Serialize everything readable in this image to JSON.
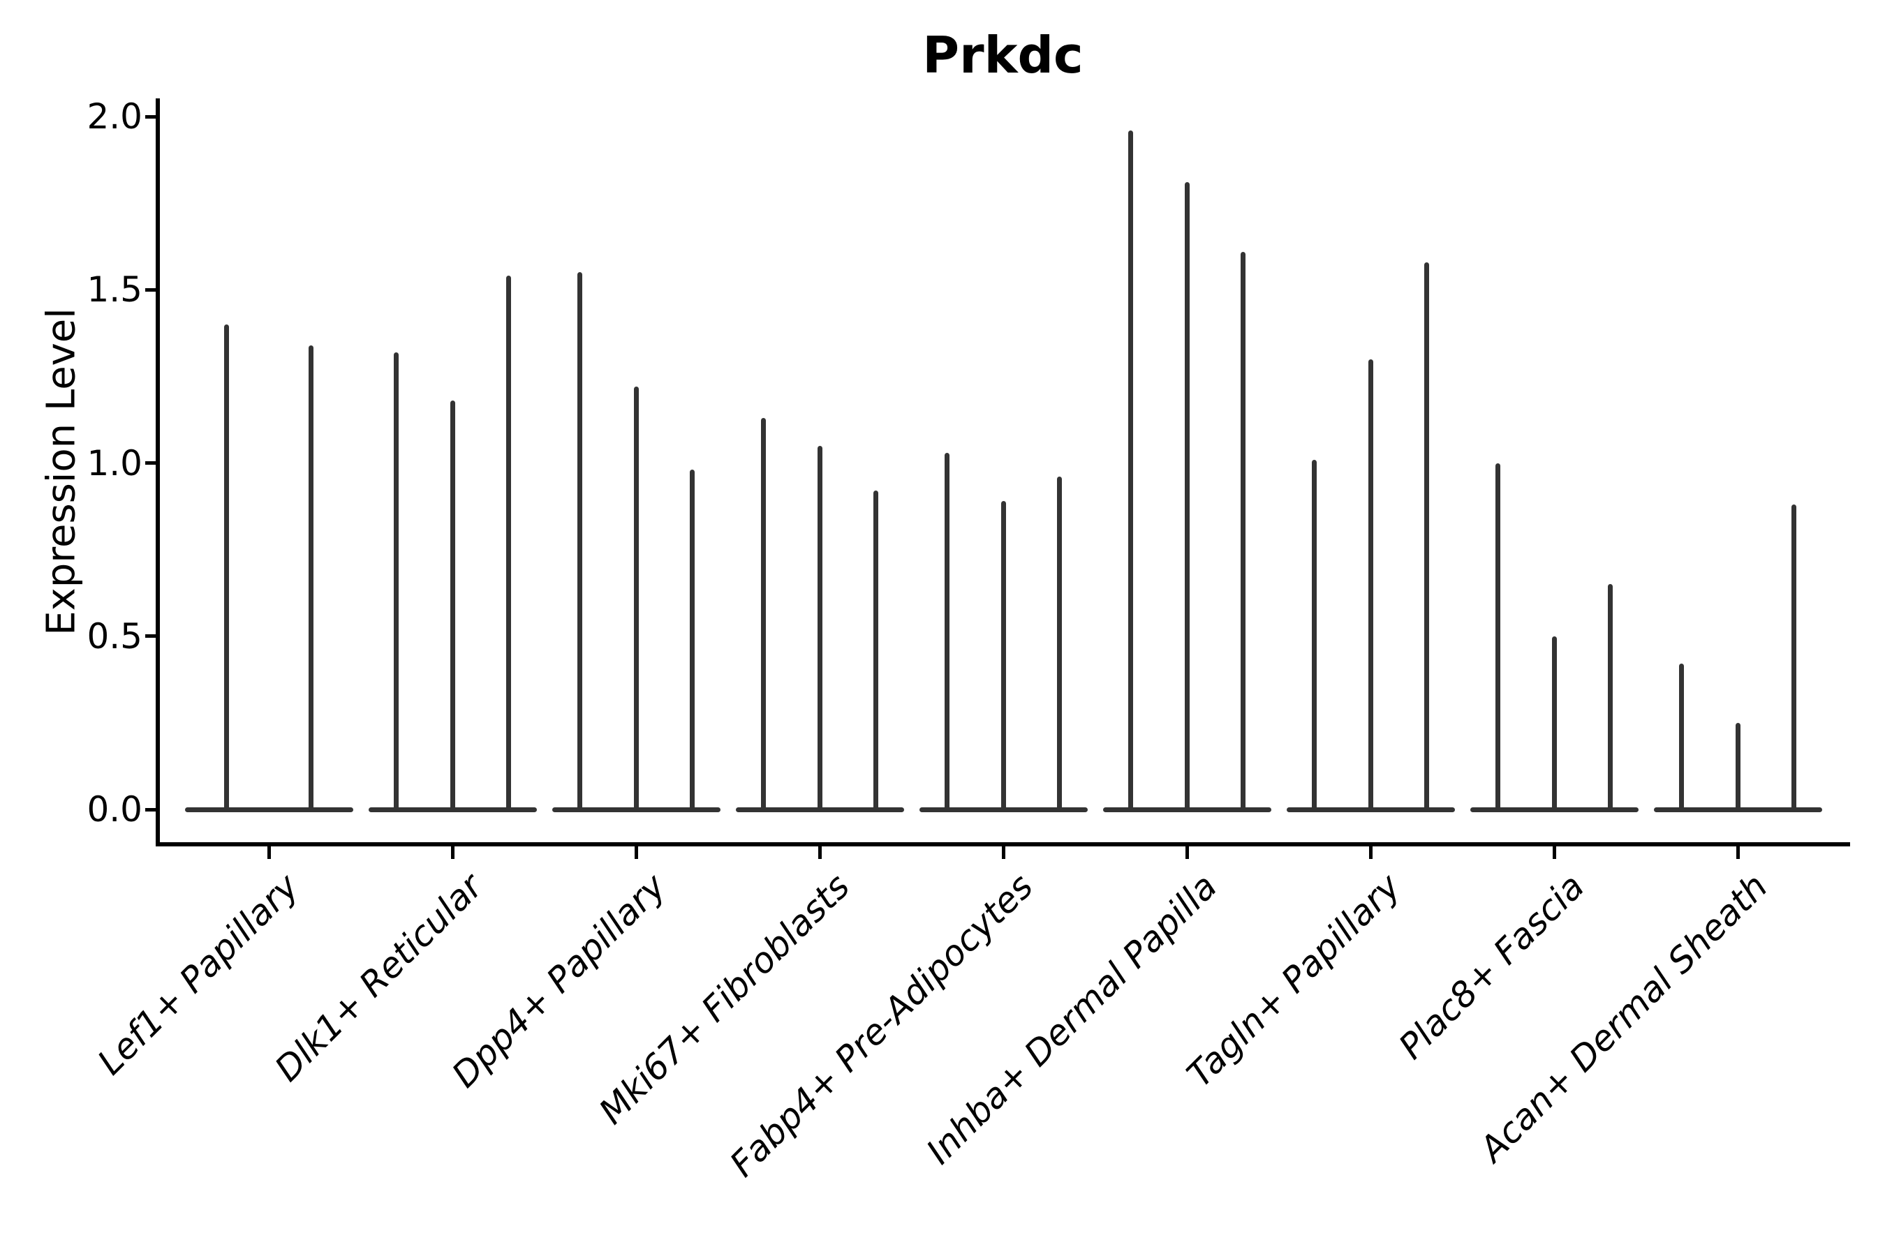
{
  "figure": {
    "title": "Prkdc",
    "ylabel": "Expression Level",
    "background_color": "#ffffff",
    "axis_color": "#000000",
    "violin_color": "#333333"
  },
  "chart_data": {
    "type": "violin",
    "title": "Prkdc",
    "xlabel": "",
    "ylabel": "Expression Level",
    "ylim": [
      0,
      2.05
    ],
    "yticks": [
      0.0,
      0.5,
      1.0,
      1.5,
      2.0
    ],
    "ytick_labels": [
      "0.0",
      "0.5",
      "1.0",
      "1.5",
      "2.0"
    ],
    "grid": false,
    "legend": "none",
    "description": "Violin plot of Prkdc expression; each category shows narrow spike-shaped violins whose peaks reach the listed expression levels, with a flat violin base at 0.",
    "categories": [
      {
        "label": "Lef1+ Papillary",
        "peaks": [
          1.4,
          1.34
        ]
      },
      {
        "label": "Dlk1+ Reticular",
        "peaks": [
          1.32,
          1.18,
          1.54
        ]
      },
      {
        "label": "Dpp4+ Papillary",
        "peaks": [
          1.55,
          1.22,
          0.98
        ]
      },
      {
        "label": "Mki67+ Fibroblasts",
        "peaks": [
          1.13,
          1.05,
          0.92
        ]
      },
      {
        "label": "Fabp4+ Pre-Adipocytes",
        "peaks": [
          1.03,
          0.89,
          0.96
        ]
      },
      {
        "label": "Inhba+ Dermal Papilla",
        "peaks": [
          1.96,
          1.81,
          1.61
        ]
      },
      {
        "label": "Tagln+ Papillary",
        "peaks": [
          1.01,
          1.3,
          1.58
        ]
      },
      {
        "label": "Plac8+ Fascia",
        "peaks": [
          1.0,
          0.5,
          0.65
        ]
      },
      {
        "label": "Acan+ Dermal Sheath",
        "peaks": [
          0.42,
          0.25,
          0.88
        ]
      }
    ]
  }
}
